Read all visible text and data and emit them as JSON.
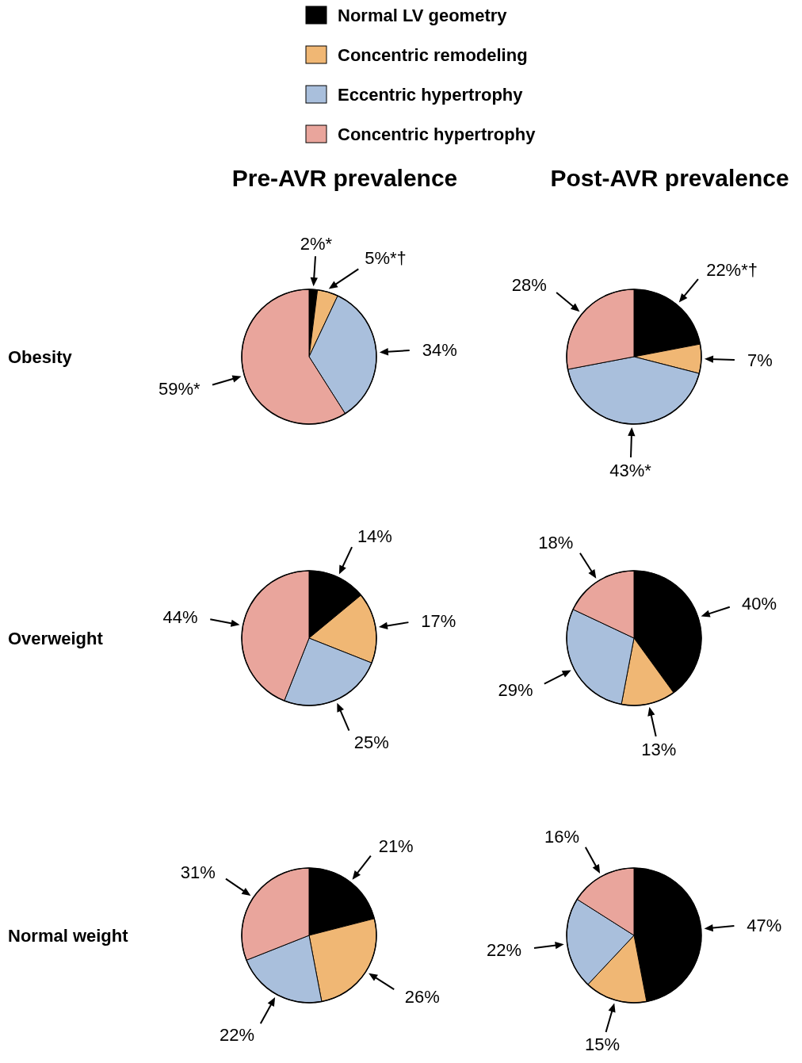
{
  "chart_data": [
    {
      "type": "pie",
      "title": "Pre-AVR prevalence",
      "ylabel": "Obesity",
      "legend": "top",
      "categories": [
        "Normal LV geometry",
        "Concentric remodeling",
        "Eccentric hypertrophy",
        "Concentric hypertrophy"
      ],
      "values": [
        2,
        5,
        34,
        59
      ],
      "colors": [
        "#000000",
        "#f0b774",
        "#a9bfdc",
        "#e9a59c"
      ],
      "value_labels": [
        "2%*",
        "5%*†",
        "34%",
        "59%*"
      ]
    },
    {
      "type": "pie",
      "title": "Post-AVR prevalence",
      "categories": [
        null,
        null,
        null,
        null
      ],
      "values": [
        22,
        7,
        43,
        28
      ],
      "colors": [
        "#000000",
        "#f0b774",
        "#a9bfdc",
        "#e9a59c"
      ],
      "value_labels": [
        "22%*†",
        "7%",
        "43%*",
        "28%"
      ]
    },
    {
      "type": "pie",
      "ylabel": "Overweight",
      "categories": [
        null,
        null,
        null,
        null
      ],
      "values": [
        14,
        17,
        25,
        44
      ],
      "colors": [
        "#000000",
        "#f0b774",
        "#a9bfdc",
        "#e9a59c"
      ],
      "value_labels": [
        "14%",
        "17%",
        "25%",
        "44%"
      ]
    },
    {
      "type": "pie",
      "categories": [
        null,
        null,
        null,
        null
      ],
      "values": [
        40,
        13,
        29,
        18
      ],
      "colors": [
        "#000000",
        "#f0b774",
        "#a9bfdc",
        "#e9a59c"
      ],
      "value_labels": [
        "40%",
        "13%",
        "29%",
        "18%"
      ]
    },
    {
      "type": "pie",
      "ylabel": "Normal weight",
      "categories": [
        null,
        null,
        null,
        null
      ],
      "values": [
        21,
        26,
        22,
        31
      ],
      "colors": [
        "#000000",
        "#f0b774",
        "#a9bfdc",
        "#e9a59c"
      ],
      "value_labels": [
        "21%",
        "26%",
        "22%",
        "31%"
      ]
    },
    {
      "type": "pie",
      "categories": [
        null,
        null,
        null,
        null
      ],
      "values": [
        47,
        15,
        22,
        16
      ],
      "colors": [
        "#000000",
        "#f0b774",
        "#a9bfdc",
        "#e9a59c"
      ],
      "value_labels": [
        "47%",
        "15%",
        "22%",
        "16%"
      ]
    }
  ]
}
